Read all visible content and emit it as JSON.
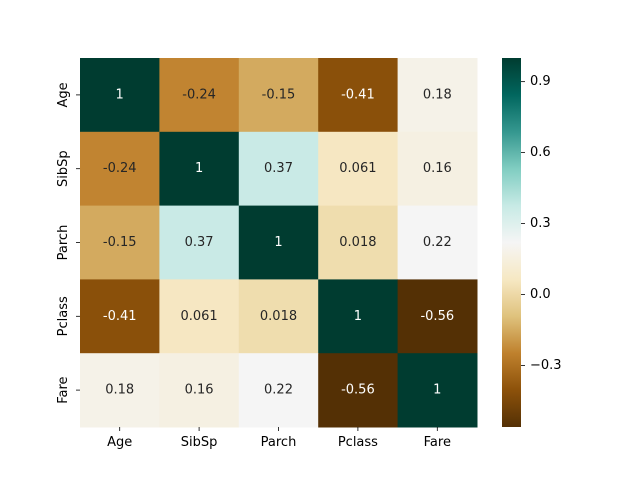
{
  "chart_data": {
    "type": "heatmap",
    "title": "",
    "xlabel": "",
    "ylabel": "",
    "row_labels": [
      "Age",
      "SibSp",
      "Parch",
      "Pclass",
      "Fare"
    ],
    "col_labels": [
      "Age",
      "SibSp",
      "Parch",
      "Pclass",
      "Fare"
    ],
    "values": [
      [
        1,
        -0.24,
        -0.15,
        -0.41,
        0.18
      ],
      [
        -0.24,
        1,
        0.37,
        0.061,
        0.16
      ],
      [
        -0.15,
        0.37,
        1,
        0.018,
        0.22
      ],
      [
        -0.41,
        0.061,
        0.018,
        1,
        -0.56
      ],
      [
        0.18,
        0.16,
        0.22,
        -0.56,
        1
      ]
    ],
    "value_labels": [
      [
        "1",
        "-0.24",
        "-0.15",
        "-0.41",
        "0.18"
      ],
      [
        "-0.24",
        "1",
        "0.37",
        "0.061",
        "0.16"
      ],
      [
        "-0.15",
        "0.37",
        "1",
        "0.018",
        "0.22"
      ],
      [
        "-0.41",
        "0.061",
        "0.018",
        "1",
        "-0.56"
      ],
      [
        "0.18",
        "0.16",
        "0.22",
        "-0.56",
        "1"
      ]
    ],
    "colormap": "BrBG",
    "vmin": -0.56,
    "vmax": 1,
    "colorbar": {
      "ticks": [
        -0.3,
        0.0,
        0.3,
        0.6,
        0.9
      ],
      "tick_labels": [
        "−0.3",
        "0.0",
        "0.3",
        "0.6",
        "0.9"
      ]
    }
  }
}
